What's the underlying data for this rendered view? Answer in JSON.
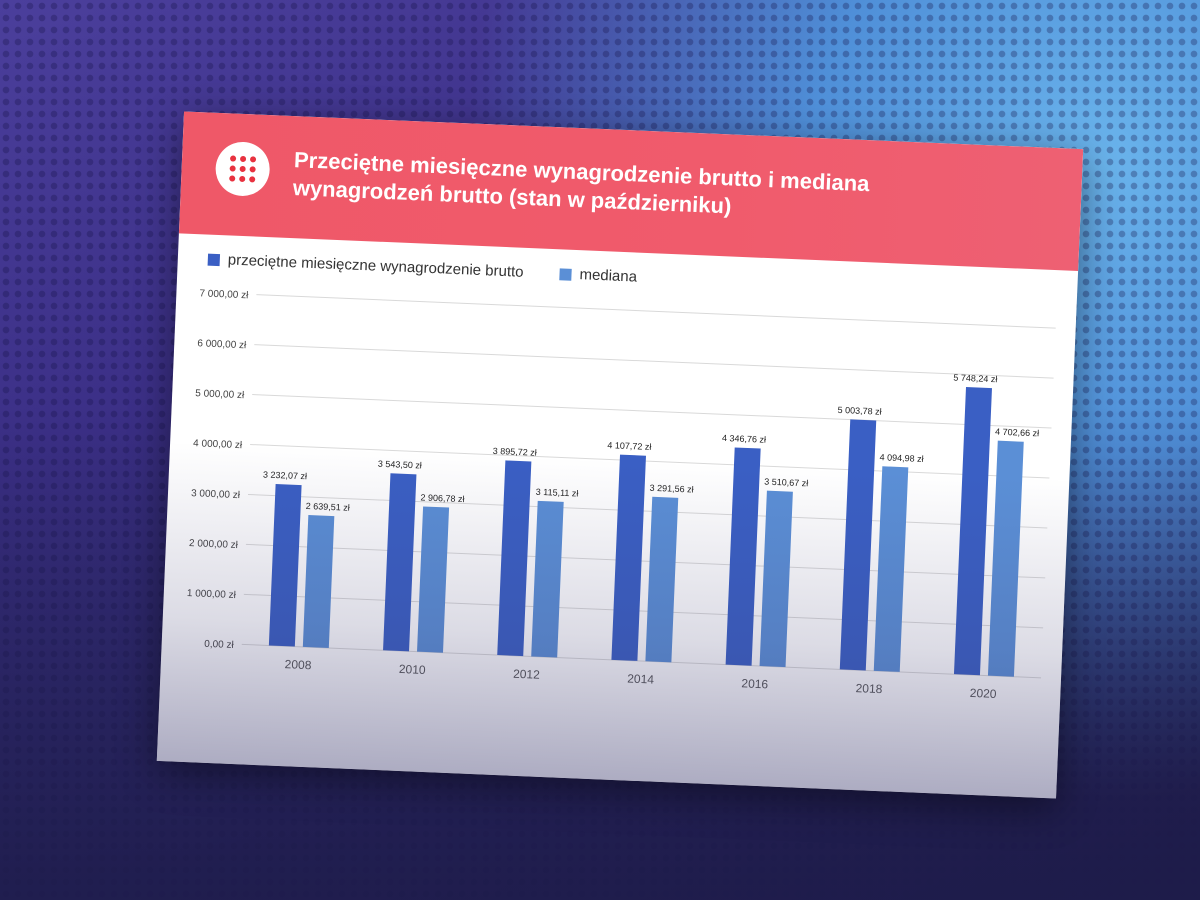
{
  "header": {
    "title_line1": "Przeciętne miesięczne wynagrodzenie brutto i mediana",
    "title_line2": "wynagrodzeń brutto (stan w październiku)"
  },
  "colors": {
    "banner": "#ef5868",
    "series_mean": "#3a5fc4",
    "series_median": "#5b8fd6",
    "logo_dots": "#e8323f"
  },
  "icons": {
    "logo": "dot-grid-logo-icon"
  },
  "chart_data": {
    "type": "bar",
    "title": "Przeciętne miesięczne wynagrodzenie brutto i mediana wynagrodzeń brutto (stan w październiku)",
    "categories": [
      "2008",
      "2010",
      "2012",
      "2014",
      "2016",
      "2018",
      "2020"
    ],
    "series": [
      {
        "name": "przeciętne miesięczne wynagrodzenie brutto",
        "values": [
          3232.07,
          3543.5,
          3895.72,
          4107.72,
          4346.76,
          5003.78,
          5748.24
        ],
        "labels": [
          "3 232,07 zł",
          "3 543,50 zł",
          "3 895,72 zł",
          "4 107,72 zł",
          "4 346,76 zł",
          "5 003,78 zł",
          "5 748,24 zł"
        ]
      },
      {
        "name": "mediana",
        "values": [
          2639.51,
          2906.78,
          3115.11,
          3291.56,
          3510.67,
          4094.98,
          4702.66
        ],
        "labels": [
          "2 639,51 zł",
          "2 906,78 zł",
          "3 115,11 zł",
          "3 291,56 zł",
          "3 510,67 zł",
          "4 094,98 zł",
          "4 702,66 zł"
        ]
      }
    ],
    "ylim": [
      0,
      7000
    ],
    "yticks": [
      0,
      1000,
      2000,
      3000,
      4000,
      5000,
      6000,
      7000
    ],
    "ytick_labels": [
      "0,00 zł",
      "1 000,00 zł",
      "2 000,00 zł",
      "3 000,00 zł",
      "4 000,00 zł",
      "5 000,00 zł",
      "6 000,00 zł",
      "7 000,00 zł"
    ],
    "grid": true,
    "legend": "top-left"
  }
}
